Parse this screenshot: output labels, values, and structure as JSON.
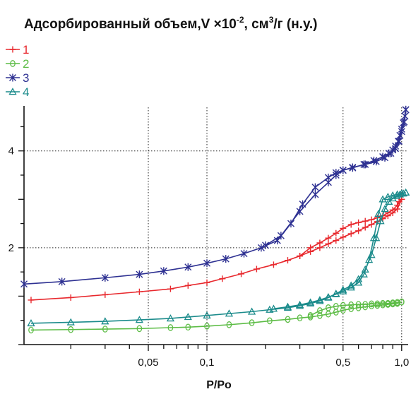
{
  "chart_data": {
    "type": "line",
    "title": {
      "prefix": "Адсорбированный  объем,V ×10",
      "exp1": "-2",
      "mid": ", см",
      "exp2": "3",
      "suffix": "/г (н.у.)"
    },
    "xlabel": "P/Po",
    "ylabel": "",
    "x_scale": "log",
    "xlim": [
      0.0115,
      1.08
    ],
    "ylim": [
      0,
      4.9
    ],
    "x_ticks": [
      {
        "value": 0.05,
        "label": "0,05"
      },
      {
        "value": 0.1,
        "label": "0,1"
      },
      {
        "value": 0.5,
        "label": "0,5"
      },
      {
        "value": 1.0,
        "label": "1,0"
      }
    ],
    "y_ticks": [
      {
        "value": 2,
        "label": "2"
      },
      {
        "value": 4,
        "label": "4"
      }
    ],
    "grid": "dotted at labeled ticks",
    "legend_position": "top-left",
    "series": [
      {
        "name": "1",
        "color": "#e8282d",
        "marker": "plus",
        "adsorption": {
          "x": [
            0.0125,
            0.02,
            0.03,
            0.045,
            0.065,
            0.08,
            0.1,
            0.12,
            0.15,
            0.18,
            0.22,
            0.26,
            0.3,
            0.34,
            0.38,
            0.42,
            0.46,
            0.5,
            0.55,
            0.6,
            0.65,
            0.7,
            0.75,
            0.8,
            0.85,
            0.9,
            0.95,
            1.0
          ],
          "y": [
            0.92,
            0.97,
            1.03,
            1.09,
            1.15,
            1.22,
            1.28,
            1.36,
            1.46,
            1.56,
            1.65,
            1.74,
            1.83,
            1.92,
            2.0,
            2.08,
            2.15,
            2.22,
            2.29,
            2.35,
            2.42,
            2.48,
            2.54,
            2.6,
            2.66,
            2.72,
            2.8,
            3.0
          ]
        },
        "desorption": {
          "x": [
            1.0,
            0.97,
            0.95,
            0.9,
            0.85,
            0.8,
            0.75,
            0.7,
            0.65,
            0.6,
            0.55,
            0.5,
            0.46,
            0.42,
            0.38,
            0.34,
            0.3
          ],
          "y": [
            3.0,
            2.95,
            2.88,
            2.78,
            2.72,
            2.66,
            2.62,
            2.58,
            2.55,
            2.52,
            2.48,
            2.4,
            2.3,
            2.2,
            2.1,
            2.0,
            1.83
          ]
        }
      },
      {
        "name": "2",
        "color": "#5cbc45",
        "marker": "circle",
        "adsorption": {
          "x": [
            0.0125,
            0.02,
            0.03,
            0.045,
            0.065,
            0.08,
            0.1,
            0.13,
            0.17,
            0.21,
            0.26,
            0.3,
            0.34,
            0.38,
            0.42,
            0.46,
            0.5,
            0.55,
            0.6,
            0.65,
            0.7,
            0.75,
            0.8,
            0.85,
            0.9,
            0.95,
            1.0
          ],
          "y": [
            0.3,
            0.31,
            0.32,
            0.33,
            0.35,
            0.36,
            0.38,
            0.41,
            0.45,
            0.49,
            0.52,
            0.55,
            0.57,
            0.6,
            0.63,
            0.67,
            0.71,
            0.74,
            0.76,
            0.78,
            0.8,
            0.81,
            0.82,
            0.83,
            0.84,
            0.85,
            0.88
          ]
        },
        "desorption": {
          "x": [
            1.0,
            0.95,
            0.9,
            0.85,
            0.8,
            0.75,
            0.7,
            0.65,
            0.6,
            0.55,
            0.5,
            0.46,
            0.42,
            0.38,
            0.34
          ],
          "y": [
            0.88,
            0.87,
            0.86,
            0.85,
            0.85,
            0.84,
            0.84,
            0.83,
            0.83,
            0.82,
            0.81,
            0.79,
            0.76,
            0.7,
            0.6
          ]
        }
      },
      {
        "name": "3",
        "color": "#2e3192",
        "marker": "star",
        "adsorption": {
          "x": [
            0.0115,
            0.018,
            0.03,
            0.045,
            0.06,
            0.08,
            0.1,
            0.125,
            0.155,
            0.19,
            0.23,
            0.27,
            0.31,
            0.36,
            0.42,
            0.46,
            0.5,
            0.56,
            0.64,
            0.72,
            0.8,
            0.86,
            0.9,
            0.93,
            0.96,
            0.98,
            1.0,
            1.02,
            1.04,
            1.05
          ],
          "y": [
            1.25,
            1.3,
            1.38,
            1.45,
            1.52,
            1.6,
            1.68,
            1.77,
            1.88,
            2.0,
            2.15,
            2.5,
            2.9,
            3.25,
            3.45,
            3.55,
            3.6,
            3.65,
            3.72,
            3.8,
            3.88,
            3.95,
            4.02,
            4.1,
            4.2,
            4.32,
            4.45,
            4.58,
            4.72,
            4.85
          ]
        },
        "desorption": {
          "x": [
            1.05,
            1.03,
            1.0,
            0.97,
            0.93,
            0.88,
            0.82,
            0.74,
            0.65,
            0.56,
            0.5,
            0.46,
            0.42,
            0.36,
            0.3,
            0.24,
            0.2
          ],
          "y": [
            4.85,
            4.6,
            4.4,
            4.2,
            4.05,
            3.95,
            3.86,
            3.78,
            3.72,
            3.66,
            3.6,
            3.5,
            3.35,
            3.1,
            2.75,
            2.25,
            2.05
          ]
        }
      },
      {
        "name": "4",
        "color": "#1b8b8b",
        "marker": "triangle",
        "adsorption": {
          "x": [
            0.0125,
            0.02,
            0.03,
            0.045,
            0.065,
            0.08,
            0.1,
            0.13,
            0.17,
            0.21,
            0.26,
            0.3,
            0.34,
            0.38,
            0.42,
            0.46,
            0.5,
            0.55,
            0.6,
            0.65,
            0.7,
            0.74,
            0.78,
            0.82,
            0.86,
            0.9,
            0.94,
            0.98,
            1.02,
            1.05
          ],
          "y": [
            0.44,
            0.46,
            0.48,
            0.51,
            0.54,
            0.57,
            0.6,
            0.64,
            0.68,
            0.72,
            0.76,
            0.8,
            0.85,
            0.9,
            0.97,
            1.05,
            1.13,
            1.22,
            1.35,
            1.55,
            1.85,
            2.2,
            2.55,
            2.8,
            2.95,
            3.02,
            3.07,
            3.1,
            3.12,
            3.14
          ]
        },
        "desorption": {
          "x": [
            1.05,
            1.0,
            0.95,
            0.9,
            0.85,
            0.8,
            0.76,
            0.72,
            0.68,
            0.64,
            0.6,
            0.55,
            0.5,
            0.46,
            0.42,
            0.38,
            0.34,
            0.3,
            0.26,
            0.22
          ],
          "y": [
            3.14,
            3.12,
            3.1,
            3.08,
            3.05,
            3.0,
            2.7,
            2.2,
            1.75,
            1.45,
            1.28,
            1.18,
            1.1,
            1.04,
            0.98,
            0.92,
            0.87,
            0.82,
            0.78,
            0.74
          ]
        }
      }
    ]
  }
}
